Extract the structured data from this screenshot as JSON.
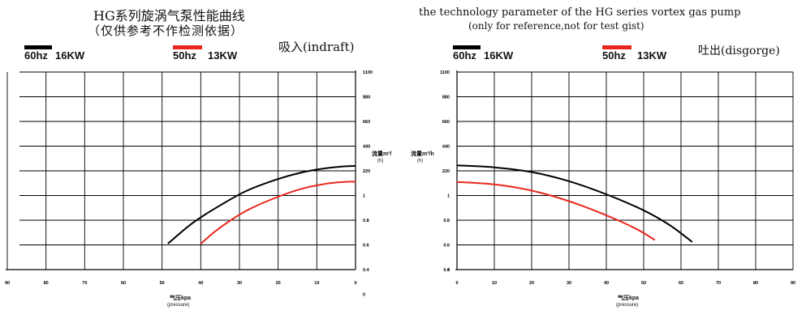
{
  "left_panel": {
    "title_line1": "HG系列旋涡气泵性能曲线",
    "title_line2": "（仅供参考不作检测依据）",
    "mode_label": "吸入(indraft)",
    "legend_60": {
      "hz": "60hz",
      "kw": "16KW",
      "color": "#000000"
    },
    "legend_50": {
      "hz": "50hz",
      "kw": "13KW",
      "color": "#e8281e"
    },
    "flow_label_line1": "流量m³/",
    "flow_label_line2": "(h)",
    "x_label_line1": "气压kpa",
    "x_label_line2": "(pressure)"
  },
  "right_panel": {
    "title_line1": "the technology parameter of the HG series vortex gas pump",
    "title_line2": "(only for reference,not for test gist)",
    "mode_label": "吐出(disgorge)",
    "legend_60": {
      "hz": "60hz",
      "kw": "16KW",
      "color": "#000000"
    },
    "legend_50": {
      "hz": "50hz",
      "kw": "13KW",
      "color": "#e8281e"
    },
    "flow_label_line1": "流量m³/h",
    "flow_label_line2": "(h)",
    "x_label_line1": "气压kpa",
    "x_label_line2": "(pressure)"
  },
  "chart_data": [
    {
      "type": "line",
      "title": "HG系列旋涡气泵性能曲线",
      "subtitle": "吸入(indraft)",
      "xlabel": "气压kpa (pressure)",
      "ylabel": "流量m³/(h)",
      "x_reversed": true,
      "xlim": [
        90,
        0
      ],
      "x_ticks": [
        "90",
        "80",
        "70",
        "60",
        "50",
        "40",
        "30",
        "20",
        "10",
        "0"
      ],
      "y_tick_labels": [
        "1100",
        "880",
        "660",
        "440",
        "220",
        "1",
        "0.8",
        "0.6",
        "0.4",
        "0"
      ],
      "grid": true,
      "series": [
        {
          "name": "60hz 16KW",
          "color": "#000000",
          "points": [
            [
              48.5,
              1.05
            ],
            [
              42,
              1.9
            ],
            [
              35,
              2.6
            ],
            [
              28,
              3.2
            ],
            [
              20,
              3.67
            ],
            [
              14,
              3.93
            ],
            [
              8,
              4.1
            ],
            [
              3,
              4.18
            ],
            [
              0,
              4.2
            ]
          ]
        },
        {
          "name": "50hz 13KW",
          "color": "#e8281e",
          "points": [
            [
              40,
              1.05
            ],
            [
              35,
              1.7
            ],
            [
              28,
              2.4
            ],
            [
              20,
              2.95
            ],
            [
              14,
              3.27
            ],
            [
              8,
              3.47
            ],
            [
              3,
              3.55
            ],
            [
              0,
              3.56
            ]
          ]
        }
      ]
    },
    {
      "type": "line",
      "title": "the technology parameter of the HG series vortex gas pump",
      "subtitle": "吐出(disgorge)",
      "xlabel": "气压kpa (pressure)",
      "ylabel": "流量m³/h (h)",
      "xlim": [
        0,
        90
      ],
      "x_ticks": [
        "0",
        "10",
        "20",
        "30",
        "40",
        "50",
        "60",
        "70",
        "80",
        "90"
      ],
      "y_tick_labels": [
        "0",
        "0.4",
        "0.6",
        "0.8",
        "1",
        "220",
        "440",
        "660",
        "880",
        "1100"
      ],
      "grid": true,
      "series": [
        {
          "name": "60hz 16KW",
          "color": "#000000",
          "points": [
            [
              0,
              4.22
            ],
            [
              10,
              4.14
            ],
            [
              20,
              3.95
            ],
            [
              30,
              3.58
            ],
            [
              40,
              3.05
            ],
            [
              50,
              2.4
            ],
            [
              57,
              1.8
            ],
            [
              63,
              1.12
            ]
          ]
        },
        {
          "name": "50hz 13KW",
          "color": "#e8281e",
          "points": [
            [
              0,
              3.55
            ],
            [
              10,
              3.45
            ],
            [
              20,
              3.2
            ],
            [
              30,
              2.77
            ],
            [
              40,
              2.2
            ],
            [
              48,
              1.65
            ],
            [
              53,
              1.2
            ]
          ]
        }
      ]
    }
  ]
}
